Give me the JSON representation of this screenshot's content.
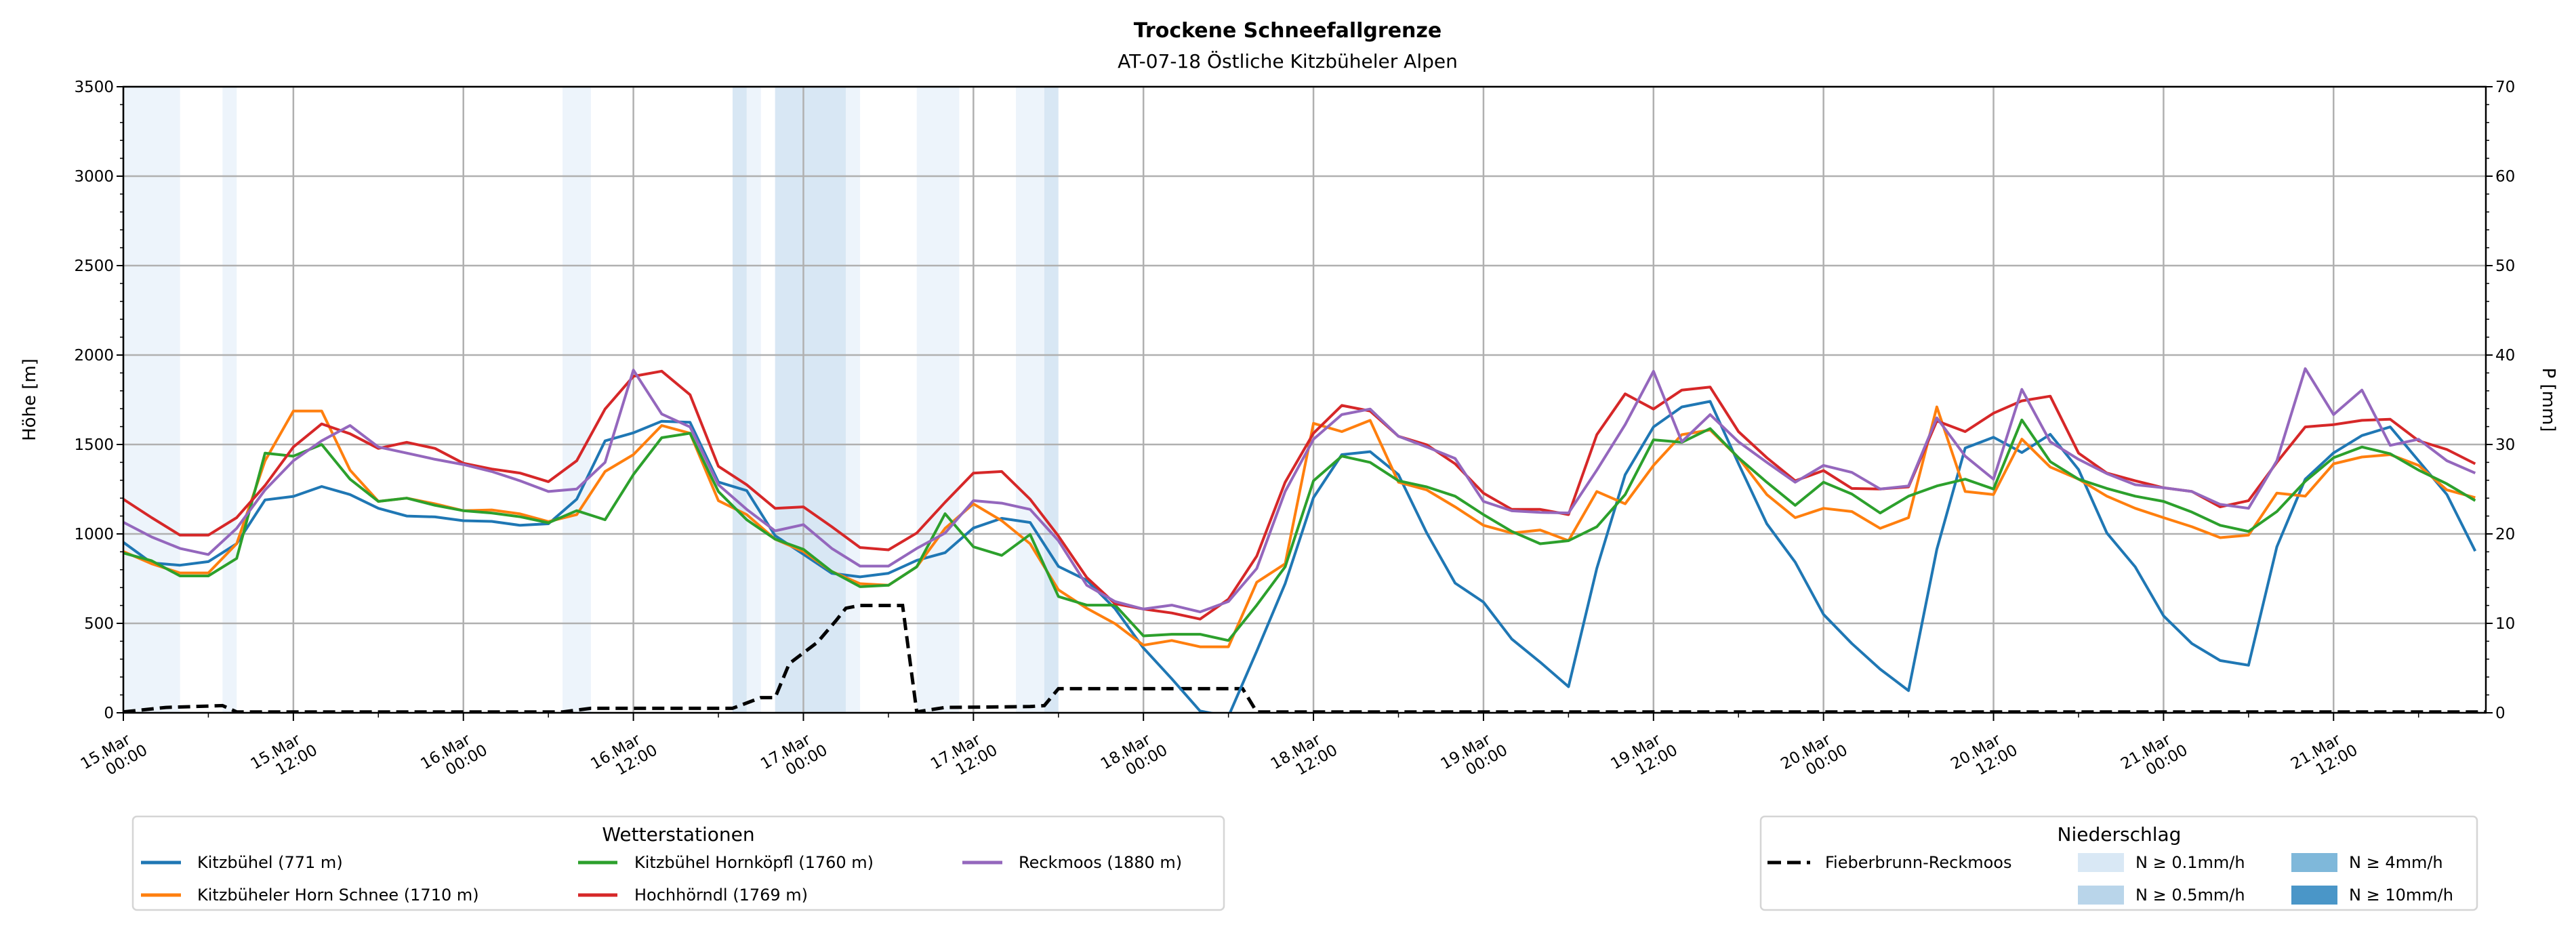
{
  "chart_data": {
    "type": "line",
    "title": "Trockene Schneefallgrenze",
    "subtitle": "AT-07-18 Östliche Kitzbüheler Alpen",
    "ylabel": "Höhe [m]",
    "ylabel_right": "P [mm]",
    "x_unit": "hours since 15.Mar 00:00",
    "xlim": [
      0,
      166.75
    ],
    "ylim": [
      0,
      3500
    ],
    "ylim_right": [
      0,
      70
    ],
    "yticks": [
      "0",
      "500",
      "1000",
      "1500",
      "2000",
      "2500",
      "3000",
      "3500"
    ],
    "yticks_right": [
      "0",
      "10",
      "20",
      "30",
      "40",
      "50",
      "60",
      "70"
    ],
    "xticks": [
      {
        "date": "15.Mar",
        "time": "00:00"
      },
      {
        "date": "15.Mar",
        "time": "12:00"
      },
      {
        "date": "16.Mar",
        "time": "00:00"
      },
      {
        "date": "16.Mar",
        "time": "12:00"
      },
      {
        "date": "17.Mar",
        "time": "00:00"
      },
      {
        "date": "17.Mar",
        "time": "12:00"
      },
      {
        "date": "18.Mar",
        "time": "00:00"
      },
      {
        "date": "18.Mar",
        "time": "12:00"
      },
      {
        "date": "19.Mar",
        "time": "00:00"
      },
      {
        "date": "19.Mar",
        "time": "12:00"
      },
      {
        "date": "20.Mar",
        "time": "00:00"
      },
      {
        "date": "20.Mar",
        "time": "12:00"
      },
      {
        "date": "21.Mar",
        "time": "00:00"
      },
      {
        "date": "21.Mar",
        "time": "12:00"
      }
    ],
    "grid": true,
    "x_step_hours": 2,
    "series": [
      {
        "name": "Kitzbühel (771 m)",
        "color": "#1f77b4",
        "values": [
          953,
          838,
          825,
          845,
          945,
          1190,
          1210,
          1265,
          1220,
          1143,
          1100,
          1095,
          1074,
          1070,
          1048,
          1057,
          1194,
          1520,
          1565,
          1630,
          1624,
          1290,
          1242,
          990,
          886,
          780,
          760,
          780,
          852,
          895,
          1033,
          1087,
          1064,
          818,
          741,
          582,
          362,
          190,
          10,
          -20,
          345,
          722,
          1203,
          1443,
          1460,
          1331,
          1005,
          725,
          619,
          412,
          283,
          146,
          808,
          1331,
          1598,
          1710,
          1741,
          1393,
          1057,
          842,
          550,
          387,
          244,
          124,
          914,
          1480,
          1540,
          1455,
          1557,
          1360,
          1005,
          816,
          542,
          387,
          292,
          266,
          928,
          1306,
          1453,
          1550,
          1598,
          1409,
          1220,
          904
        ]
      },
      {
        "name": "Kitzbüheler Horn Schnee (1710 m)",
        "color": "#ff7f0e",
        "values": [
          902,
          833,
          782,
          782,
          945,
          1409,
          1687,
          1687,
          1357,
          1182,
          1200,
          1168,
          1130,
          1134,
          1112,
          1069,
          1108,
          1349,
          1443,
          1606,
          1563,
          1186,
          1108,
          971,
          902,
          790,
          722,
          713,
          816,
          1031,
          1168,
          1074,
          945,
          687,
          584,
          498,
          378,
          404,
          369,
          369,
          730,
          833,
          1618,
          1572,
          1635,
          1289,
          1246,
          1151,
          1048,
          1005,
          1022,
          962,
          1237,
          1168,
          1383,
          1555,
          1581,
          1426,
          1220,
          1091,
          1143,
          1125,
          1031,
          1091,
          1710,
          1237,
          1220,
          1530,
          1374,
          1306,
          1211,
          1143,
          1091,
          1040,
          979,
          993,
          1228,
          1211,
          1392,
          1430,
          1443,
          1383,
          1246,
          1203
        ]
      },
      {
        "name": "Kitzbühel Hornköpfl (1760 m)",
        "color": "#2ca02c",
        "values": [
          893,
          850,
          765,
          765,
          863,
          1452,
          1435,
          1500,
          1306,
          1182,
          1200,
          1160,
          1130,
          1117,
          1096,
          1062,
          1130,
          1079,
          1332,
          1538,
          1563,
          1237,
          1079,
          971,
          914,
          790,
          705,
          713,
          816,
          1113,
          928,
          880,
          997,
          650,
          602,
          602,
          430,
          439,
          439,
          404,
          602,
          816,
          1297,
          1435,
          1400,
          1297,
          1263,
          1211,
          1108,
          1014,
          945,
          962,
          1040,
          1220,
          1526,
          1512,
          1589,
          1426,
          1289,
          1160,
          1289,
          1223,
          1117,
          1211,
          1268,
          1306,
          1251,
          1637,
          1404,
          1306,
          1254,
          1211,
          1182,
          1122,
          1048,
          1014,
          1125,
          1294,
          1426,
          1486,
          1448,
          1357,
          1280,
          1186
        ]
      },
      {
        "name": "Hochhörndl (1769 m)",
        "color": "#d62728",
        "values": [
          1194,
          1091,
          993,
          993,
          1091,
          1271,
          1486,
          1615,
          1560,
          1478,
          1512,
          1478,
          1395,
          1363,
          1340,
          1292,
          1409,
          1698,
          1881,
          1910,
          1778,
          1378,
          1275,
          1143,
          1151,
          1040,
          924,
          911,
          1005,
          1177,
          1340,
          1349,
          1194,
          988,
          756,
          610,
          580,
          558,
          524,
          635,
          876,
          1289,
          1563,
          1718,
          1687,
          1546,
          1498,
          1392,
          1228,
          1137,
          1137,
          1108,
          1555,
          1783,
          1698,
          1804,
          1821,
          1572,
          1426,
          1297,
          1354,
          1254,
          1251,
          1263,
          1632,
          1572,
          1675,
          1744,
          1770,
          1452,
          1340,
          1297,
          1258,
          1237,
          1151,
          1186,
          1400,
          1598,
          1611,
          1635,
          1641,
          1521,
          1472,
          1392
        ]
      },
      {
        "name": "Reckmoos (1880 m)",
        "color": "#9467bd",
        "values": [
          1065,
          983,
          919,
          885,
          1031,
          1246,
          1409,
          1521,
          1606,
          1486,
          1452,
          1417,
          1388,
          1349,
          1297,
          1237,
          1251,
          1400,
          1916,
          1670,
          1598,
          1275,
          1137,
          1017,
          1052,
          919,
          820,
          820,
          919,
          1005,
          1186,
          1172,
          1137,
          962,
          713,
          622,
          580,
          602,
          564,
          622,
          807,
          1237,
          1529,
          1667,
          1698,
          1546,
          1486,
          1422,
          1182,
          1129,
          1120,
          1117,
          1357,
          1611,
          1909,
          1515,
          1667,
          1515,
          1400,
          1289,
          1383,
          1344,
          1251,
          1268,
          1649,
          1435,
          1306,
          1808,
          1515,
          1417,
          1337,
          1275,
          1258,
          1237,
          1165,
          1143,
          1409,
          1924,
          1667,
          1804,
          1495,
          1529,
          1409,
          1340
        ]
      }
    ],
    "precip_series": {
      "name": "Fieberbrunn-Reckmoos",
      "color": "#000000",
      "style": "dashed",
      "points": [
        [
          0,
          0.1
        ],
        [
          3,
          0.6
        ],
        [
          7,
          0.8
        ],
        [
          8,
          0.1
        ],
        [
          31,
          0.1
        ],
        [
          33,
          0.5
        ],
        [
          43,
          0.5
        ],
        [
          45,
          1.7
        ],
        [
          46,
          1.7
        ],
        [
          47,
          5.5
        ],
        [
          49,
          7.9
        ],
        [
          50.3,
          10.3
        ],
        [
          51,
          11.7
        ],
        [
          52,
          12
        ],
        [
          55,
          12
        ],
        [
          56,
          0.1
        ],
        [
          58,
          0.6
        ],
        [
          64,
          0.7
        ],
        [
          65,
          0.8
        ],
        [
          66,
          2.7
        ],
        [
          79,
          2.7
        ],
        [
          80,
          0.1
        ],
        [
          166.75,
          0.1
        ]
      ]
    },
    "precip_bands": [
      {
        "from": 0,
        "to": 4,
        "level": 0
      },
      {
        "from": 7,
        "to": 8,
        "level": 0
      },
      {
        "from": 31,
        "to": 33,
        "level": 0
      },
      {
        "from": 43,
        "to": 44,
        "level": 1
      },
      {
        "from": 44,
        "to": 45,
        "level": 0
      },
      {
        "from": 46,
        "to": 51,
        "level": 1
      },
      {
        "from": 51,
        "to": 52,
        "level": 0
      },
      {
        "from": 56,
        "to": 59,
        "level": 0
      },
      {
        "from": 63,
        "to": 65,
        "level": 0
      },
      {
        "from": 65,
        "to": 66,
        "level": 1
      }
    ],
    "legend_stations": {
      "title": "Wetterstationen",
      "placement": "bottom-left"
    },
    "legend_precip": {
      "title": "Niederschlag",
      "placement": "bottom-right",
      "levels": [
        {
          "label": "N ≥ 0.1mm/h",
          "color": "#d9e8f5"
        },
        {
          "label": "N ≥ 0.5mm/h",
          "color": "#b9d5ea"
        },
        {
          "label": "N ≥ 4mm/h",
          "color": "#7fb8da"
        },
        {
          "label": "N ≥ 10mm/h",
          "color": "#4a96c8"
        }
      ]
    }
  }
}
